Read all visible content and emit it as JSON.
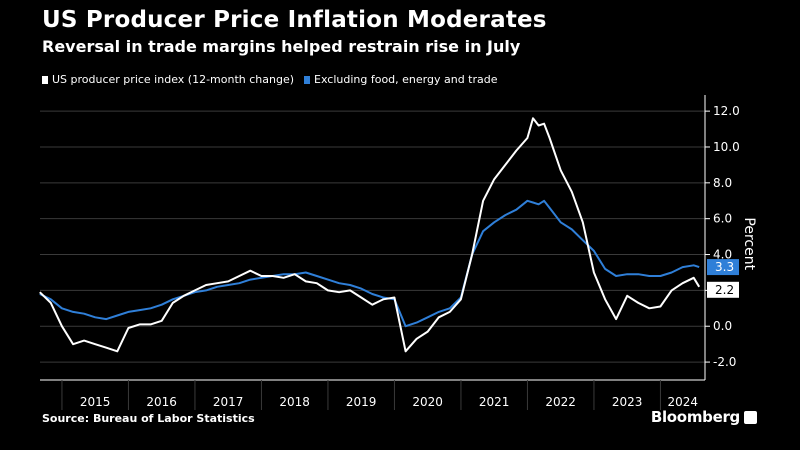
{
  "header": {
    "title": "US Producer Price Inflation Moderates",
    "subtitle": "Reversal in trade margins helped restrain rise in July"
  },
  "source": "Source: Bureau of Labor Statistics",
  "brand": "Bloomberg",
  "colors": {
    "background": "#000000",
    "series1": "#ffffff",
    "series2": "#2f7fd8",
    "grid": "#3a3a3a"
  },
  "chart_data": {
    "type": "line",
    "title": "US Producer Price Inflation Moderates",
    "ylabel": "Percent",
    "xlabel": "",
    "ylim": [
      -3,
      12.9
    ],
    "yticks": [
      12.0,
      10.0,
      8.0,
      6.0,
      4.0,
      2.0,
      0.0,
      -2.0
    ],
    "ytick_labels": [
      "12.0",
      "10.0",
      "8.0",
      "6.0",
      "4.0",
      "2.0",
      "0.0",
      "-2.0"
    ],
    "xlim": [
      2014.67,
      2024.67
    ],
    "year_labels": [
      "2015",
      "2016",
      "2017",
      "2018",
      "2019",
      "2020",
      "2021",
      "2022",
      "2023",
      "2024"
    ],
    "legend": "top-left",
    "grid": true,
    "end_labels": [
      {
        "series": "Excluding food, energy and trade",
        "value": 3.3,
        "text": "3.3"
      },
      {
        "series": "US producer price index (12-month change)",
        "value": 2.2,
        "text": "2.2"
      }
    ],
    "series": [
      {
        "name": "US producer price index (12-month change)",
        "color": "#ffffff",
        "x": [
          2014.667,
          2014.833,
          2015.0,
          2015.167,
          2015.333,
          2015.5,
          2015.667,
          2015.833,
          2016.0,
          2016.167,
          2016.333,
          2016.5,
          2016.667,
          2016.833,
          2017.0,
          2017.167,
          2017.333,
          2017.5,
          2017.667,
          2017.833,
          2018.0,
          2018.167,
          2018.333,
          2018.5,
          2018.667,
          2018.833,
          2019.0,
          2019.167,
          2019.333,
          2019.5,
          2019.667,
          2019.833,
          2020.0,
          2020.167,
          2020.333,
          2020.5,
          2020.667,
          2020.833,
          2021.0,
          2021.167,
          2021.333,
          2021.5,
          2021.667,
          2021.833,
          2022.0,
          2022.083,
          2022.167,
          2022.25,
          2022.333,
          2022.5,
          2022.667,
          2022.833,
          2023.0,
          2023.167,
          2023.333,
          2023.5,
          2023.667,
          2023.833,
          2024.0,
          2024.167,
          2024.333,
          2024.5,
          2024.583
        ],
        "values": [
          1.9,
          1.3,
          0.0,
          -1.0,
          -0.8,
          -1.0,
          -1.2,
          -1.4,
          -0.1,
          0.1,
          0.1,
          0.3,
          1.3,
          1.7,
          2.0,
          2.3,
          2.4,
          2.5,
          2.8,
          3.1,
          2.8,
          2.8,
          2.7,
          2.9,
          2.5,
          2.4,
          2.0,
          1.9,
          2.0,
          1.6,
          1.2,
          1.5,
          1.6,
          -1.4,
          -0.7,
          -0.3,
          0.5,
          0.8,
          1.5,
          4.0,
          7.0,
          8.2,
          9.0,
          9.8,
          10.5,
          11.6,
          11.2,
          11.3,
          10.5,
          8.7,
          7.5,
          5.8,
          3.0,
          1.5,
          0.4,
          1.7,
          1.3,
          1.0,
          1.1,
          2.0,
          2.4,
          2.7,
          2.2
        ]
      },
      {
        "name": "Excluding food, energy and trade",
        "color": "#2f7fd8",
        "x": [
          2014.667,
          2014.833,
          2015.0,
          2015.167,
          2015.333,
          2015.5,
          2015.667,
          2015.833,
          2016.0,
          2016.167,
          2016.333,
          2016.5,
          2016.667,
          2016.833,
          2017.0,
          2017.167,
          2017.333,
          2017.5,
          2017.667,
          2017.833,
          2018.0,
          2018.167,
          2018.333,
          2018.5,
          2018.667,
          2018.833,
          2019.0,
          2019.167,
          2019.333,
          2019.5,
          2019.667,
          2019.833,
          2020.0,
          2020.167,
          2020.333,
          2020.5,
          2020.667,
          2020.833,
          2021.0,
          2021.167,
          2021.333,
          2021.5,
          2021.667,
          2021.833,
          2022.0,
          2022.083,
          2022.167,
          2022.25,
          2022.333,
          2022.5,
          2022.667,
          2022.833,
          2023.0,
          2023.167,
          2023.333,
          2023.5,
          2023.667,
          2023.833,
          2024.0,
          2024.167,
          2024.333,
          2024.5,
          2024.583
        ],
        "values": [
          1.8,
          1.5,
          1.0,
          0.8,
          0.7,
          0.5,
          0.4,
          0.6,
          0.8,
          0.9,
          1.0,
          1.2,
          1.5,
          1.7,
          1.9,
          2.0,
          2.2,
          2.3,
          2.4,
          2.6,
          2.7,
          2.8,
          2.9,
          2.9,
          3.0,
          2.8,
          2.6,
          2.4,
          2.3,
          2.1,
          1.8,
          1.6,
          1.5,
          0.0,
          0.2,
          0.5,
          0.8,
          1.0,
          1.6,
          4.0,
          5.3,
          5.8,
          6.2,
          6.5,
          7.0,
          6.9,
          6.8,
          7.0,
          6.6,
          5.8,
          5.4,
          4.8,
          4.2,
          3.2,
          2.8,
          2.9,
          2.9,
          2.8,
          2.8,
          3.0,
          3.3,
          3.4,
          3.3
        ]
      }
    ]
  },
  "legend_items": [
    {
      "label": "US producer price index (12-month change)",
      "color": "#ffffff"
    },
    {
      "label": "Excluding food, energy and trade",
      "color": "#2f7fd8"
    }
  ]
}
